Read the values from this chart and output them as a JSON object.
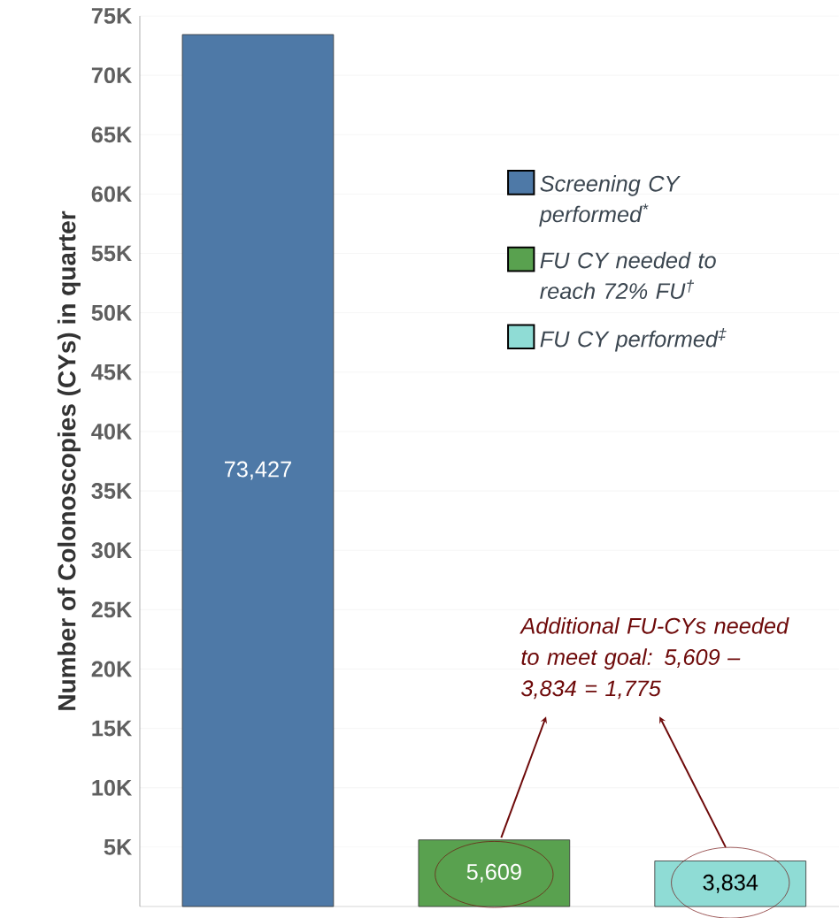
{
  "chart_data": {
    "type": "bar",
    "ylabel": "Number of Colonoscopies (CYs) in quarter",
    "categories": [
      null,
      null,
      null
    ],
    "series": [
      {
        "name": "Screening CY performed$^{*}$",
        "color": "#4e79a7",
        "values": [
          73427,
          null,
          null
        ],
        "value_labels": [
          "73,427",
          null,
          null
        ]
      },
      {
        "name": "FU CY needed to reach 72% FU$^{†}$",
        "color": "#59a14f",
        "values": [
          null,
          5609,
          null
        ],
        "value_labels": [
          null,
          "5,609",
          null
        ]
      },
      {
        "name": "FU CY performed$^{‡}$",
        "color": "#8fdcd5",
        "values": [
          null,
          null,
          3834
        ],
        "value_labels": [
          null,
          null,
          "3,834"
        ]
      }
    ],
    "ylim": [
      0,
      75000
    ],
    "yticks": [
      {
        "value": 5000,
        "label": "5K"
      },
      {
        "value": 10000,
        "label": "10K"
      },
      {
        "value": 15000,
        "label": "15K"
      },
      {
        "value": 20000,
        "label": "20K"
      },
      {
        "value": 25000,
        "label": "25K"
      },
      {
        "value": 30000,
        "label": "30K"
      },
      {
        "value": 35000,
        "label": "35K"
      },
      {
        "value": 40000,
        "label": "40K"
      },
      {
        "value": 45000,
        "label": "45K"
      },
      {
        "value": 50000,
        "label": "50K"
      },
      {
        "value": 55000,
        "label": "55K"
      },
      {
        "value": 60000,
        "label": "60K"
      },
      {
        "value": 65000,
        "label": "65K"
      },
      {
        "value": 70000,
        "label": "70K"
      },
      {
        "value": 75000,
        "label": "75K"
      }
    ],
    "grid": "y",
    "legend": "right",
    "annotations": [
      "Additional FU-CYs needed to meet goal: 5,609 – 3,834 = 1,775"
    ]
  }
}
